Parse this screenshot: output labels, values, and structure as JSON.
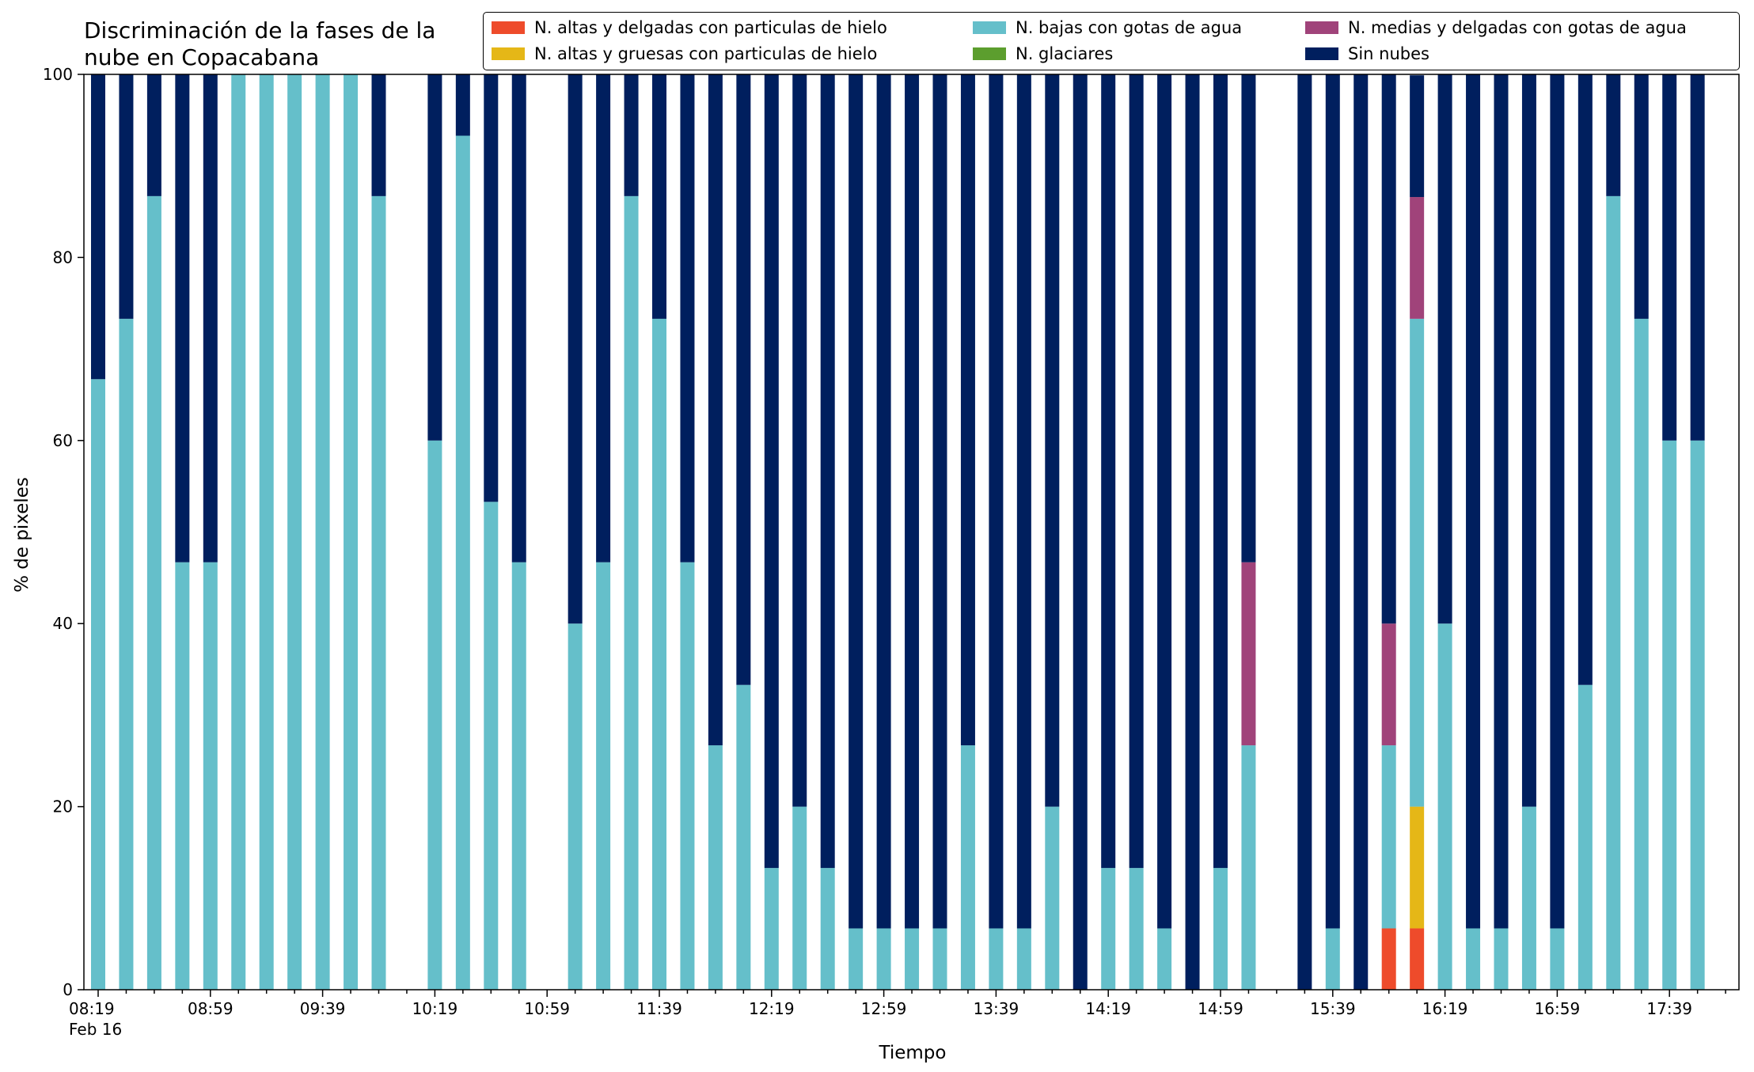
{
  "chart_data": {
    "type": "bar",
    "stacked": true,
    "title_lines": [
      "Discriminación de la fases de la",
      "nube en Copacabana"
    ],
    "xlabel": "Tiempo",
    "ylabel": "% de pixeles",
    "ylim": [
      0,
      100
    ],
    "yticks": [
      0,
      20,
      40,
      60,
      80,
      100
    ],
    "x_start": "08:19",
    "x_step_minutes": 10,
    "x_slots": 59,
    "tick_labels": [
      {
        "slot": 0,
        "label": "08:19",
        "sublabel": "Feb 16"
      },
      {
        "slot": 4,
        "label": "08:59"
      },
      {
        "slot": 8,
        "label": "09:39"
      },
      {
        "slot": 12,
        "label": "10:19"
      },
      {
        "slot": 16,
        "label": "10:59"
      },
      {
        "slot": 20,
        "label": "11:39"
      },
      {
        "slot": 24,
        "label": "12:19"
      },
      {
        "slot": 28,
        "label": "12:59"
      },
      {
        "slot": 32,
        "label": "13:39"
      },
      {
        "slot": 36,
        "label": "14:19"
      },
      {
        "slot": 40,
        "label": "14:59"
      },
      {
        "slot": 44,
        "label": "15:39"
      },
      {
        "slot": 48,
        "label": "16:19"
      },
      {
        "slot": 52,
        "label": "16:59"
      },
      {
        "slot": 56,
        "label": "17:39"
      }
    ],
    "legend_position": "top",
    "series": [
      {
        "name": "N. altas y delgadas con particulas de hielo",
        "color": "#ee4b2b"
      },
      {
        "name": "N. altas y gruesas con particulas de hielo",
        "color": "#e5b717"
      },
      {
        "name": "N. bajas con gotas de agua",
        "color": "#65bfca"
      },
      {
        "name": "N. glaciares",
        "color": "#5c9e2e"
      },
      {
        "name": "N. medias y delgadas con gotas de agua",
        "color": "#a0437a"
      },
      {
        "name": "Sin nubes",
        "color": "#001f5e"
      }
    ],
    "bars": [
      {
        "slot": 0,
        "values": [
          0,
          0,
          66.7,
          0,
          0,
          33.3
        ]
      },
      {
        "slot": 1,
        "values": [
          0,
          0,
          73.3,
          0,
          0,
          26.7
        ]
      },
      {
        "slot": 2,
        "values": [
          0,
          0,
          86.7,
          0,
          0,
          13.3
        ]
      },
      {
        "slot": 3,
        "values": [
          0,
          0,
          46.7,
          0,
          0,
          53.3
        ]
      },
      {
        "slot": 4,
        "values": [
          0,
          0,
          46.7,
          0,
          0,
          53.3
        ]
      },
      {
        "slot": 5,
        "values": [
          0,
          0,
          100,
          0,
          0,
          0
        ]
      },
      {
        "slot": 6,
        "values": [
          0,
          0,
          100,
          0,
          0,
          0
        ]
      },
      {
        "slot": 7,
        "values": [
          0,
          0,
          100,
          0,
          0,
          0
        ]
      },
      {
        "slot": 8,
        "values": [
          0,
          0,
          100,
          0,
          0,
          0
        ]
      },
      {
        "slot": 9,
        "values": [
          0,
          0,
          100,
          0,
          0,
          0
        ]
      },
      {
        "slot": 10,
        "values": [
          0,
          0,
          86.7,
          0,
          0,
          13.3
        ]
      },
      {
        "slot": 12,
        "values": [
          0,
          0,
          60,
          0,
          0,
          40
        ]
      },
      {
        "slot": 13,
        "values": [
          0,
          0,
          93.3,
          0,
          0,
          6.7
        ]
      },
      {
        "slot": 14,
        "values": [
          0,
          0,
          53.3,
          0,
          0,
          46.7
        ]
      },
      {
        "slot": 15,
        "values": [
          0,
          0,
          46.7,
          0,
          0,
          53.3
        ]
      },
      {
        "slot": 17,
        "values": [
          0,
          0,
          40,
          0,
          0,
          60
        ]
      },
      {
        "slot": 18,
        "values": [
          0,
          0,
          46.7,
          0,
          0,
          53.3
        ]
      },
      {
        "slot": 19,
        "values": [
          0,
          0,
          86.7,
          0,
          0,
          13.3
        ]
      },
      {
        "slot": 20,
        "values": [
          0,
          0,
          73.3,
          0,
          0,
          26.7
        ]
      },
      {
        "slot": 21,
        "values": [
          0,
          0,
          46.7,
          0,
          0,
          53.3
        ]
      },
      {
        "slot": 22,
        "values": [
          0,
          0,
          26.7,
          0,
          0,
          73.3
        ]
      },
      {
        "slot": 23,
        "values": [
          0,
          0,
          33.3,
          0,
          0,
          66.7
        ]
      },
      {
        "slot": 24,
        "values": [
          0,
          0,
          13.3,
          0,
          0,
          86.7
        ]
      },
      {
        "slot": 25,
        "values": [
          0,
          0,
          20,
          0,
          0,
          80
        ]
      },
      {
        "slot": 26,
        "values": [
          0,
          0,
          13.3,
          0,
          0,
          86.7
        ]
      },
      {
        "slot": 27,
        "values": [
          0,
          0,
          6.7,
          0,
          0,
          93.3
        ]
      },
      {
        "slot": 28,
        "values": [
          0,
          0,
          6.7,
          0,
          0,
          93.3
        ]
      },
      {
        "slot": 29,
        "values": [
          0,
          0,
          6.7,
          0,
          0,
          93.3
        ]
      },
      {
        "slot": 30,
        "values": [
          0,
          0,
          6.7,
          0,
          0,
          93.3
        ]
      },
      {
        "slot": 31,
        "values": [
          0,
          0,
          26.7,
          0,
          0,
          73.3
        ]
      },
      {
        "slot": 32,
        "values": [
          0,
          0,
          6.7,
          0,
          0,
          93.3
        ]
      },
      {
        "slot": 33,
        "values": [
          0,
          0,
          6.7,
          0,
          0,
          93.3
        ]
      },
      {
        "slot": 34,
        "values": [
          0,
          0,
          20,
          0,
          0,
          80
        ]
      },
      {
        "slot": 35,
        "values": [
          0,
          0,
          0,
          0,
          0,
          100
        ]
      },
      {
        "slot": 36,
        "values": [
          0,
          0,
          13.3,
          0,
          0,
          86.7
        ]
      },
      {
        "slot": 37,
        "values": [
          0,
          0,
          13.3,
          0,
          0,
          86.7
        ]
      },
      {
        "slot": 38,
        "values": [
          0,
          0,
          6.7,
          0,
          0,
          93.3
        ]
      },
      {
        "slot": 39,
        "values": [
          0,
          0,
          0,
          0,
          0,
          100
        ]
      },
      {
        "slot": 40,
        "values": [
          0,
          0,
          13.3,
          0,
          0,
          86.7
        ]
      },
      {
        "slot": 41,
        "values": [
          0,
          0,
          26.7,
          0,
          20,
          53.3
        ]
      },
      {
        "slot": 43,
        "values": [
          0,
          0,
          0,
          0,
          0,
          100
        ]
      },
      {
        "slot": 44,
        "values": [
          0,
          0,
          6.7,
          0,
          0,
          93.3
        ]
      },
      {
        "slot": 45,
        "values": [
          0,
          0,
          0,
          0,
          0,
          100
        ]
      },
      {
        "slot": 46,
        "values": [
          6.7,
          0,
          20,
          0,
          13.3,
          60
        ]
      },
      {
        "slot": 47,
        "values": [
          6.7,
          13.3,
          53.3,
          0,
          13.3,
          13.3
        ]
      },
      {
        "slot": 48,
        "values": [
          0,
          0,
          40,
          0,
          0,
          60
        ]
      },
      {
        "slot": 49,
        "values": [
          0,
          0,
          6.7,
          0,
          0,
          93.3
        ]
      },
      {
        "slot": 50,
        "values": [
          0,
          0,
          6.7,
          0,
          0,
          93.3
        ]
      },
      {
        "slot": 51,
        "values": [
          0,
          0,
          20,
          0,
          0,
          80
        ]
      },
      {
        "slot": 52,
        "values": [
          0,
          0,
          6.7,
          0,
          0,
          93.3
        ]
      },
      {
        "slot": 53,
        "values": [
          0,
          0,
          33.3,
          0,
          0,
          66.7
        ]
      },
      {
        "slot": 54,
        "values": [
          0,
          0,
          86.7,
          0,
          0,
          13.3
        ]
      },
      {
        "slot": 55,
        "values": [
          0,
          0,
          73.3,
          0,
          0,
          26.7
        ]
      },
      {
        "slot": 56,
        "values": [
          0,
          0,
          60,
          0,
          0,
          40
        ]
      },
      {
        "slot": 57,
        "values": [
          0,
          0,
          60,
          0,
          0,
          40
        ]
      }
    ]
  }
}
